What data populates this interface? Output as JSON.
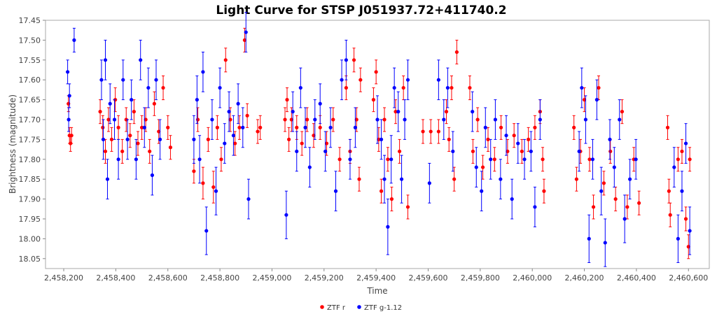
{
  "chart_data": {
    "type": "scatter",
    "title": "Light Curve for STSP J051937.72+411740.2",
    "xlabel": "Time",
    "ylabel": "Brightness (magnitude)",
    "xlim": [
      2458130,
      2460680
    ],
    "ylim": [
      17.45,
      18.075
    ],
    "y_inverted": true,
    "grid": false,
    "legend_position": "bottom-center",
    "x_ticks": [
      2458200,
      2458400,
      2458600,
      2458800,
      2459000,
      2459200,
      2459400,
      2459600,
      2459800,
      2460000,
      2460200,
      2460400,
      2460600
    ],
    "x_tick_labels": [
      "2,458,200",
      "2,458,400",
      "2,458,600",
      "2,458,800",
      "2,459,000",
      "2,459,200",
      "2,459,400",
      "2,459,600",
      "2,459,800",
      "2,460,000",
      "2,460,200",
      "2,460,400",
      "2,460,600"
    ],
    "y_ticks": [
      17.45,
      17.5,
      17.55,
      17.6,
      17.65,
      17.7,
      17.75,
      17.8,
      17.85,
      17.9,
      17.95,
      18.0,
      18.05
    ],
    "y_tick_labels": [
      "17.45",
      "17.50",
      "17.55",
      "17.60",
      "17.65",
      "17.70",
      "17.75",
      "17.80",
      "17.85",
      "17.90",
      "17.95",
      "18.00",
      "18.05"
    ],
    "series": [
      {
        "name": "ZTF r",
        "color": "#ff0000",
        "points": [
          [
            2458218,
            17.66,
            0.02
          ],
          [
            2458222,
            17.74,
            0.02
          ],
          [
            2458226,
            17.76,
            0.02
          ],
          [
            2458230,
            17.74,
            0.02
          ],
          [
            2458340,
            17.68,
            0.03
          ],
          [
            2458350,
            17.72,
            0.03
          ],
          [
            2458360,
            17.78,
            0.03
          ],
          [
            2458372,
            17.7,
            0.03
          ],
          [
            2458384,
            17.75,
            0.03
          ],
          [
            2458398,
            17.65,
            0.03
          ],
          [
            2458410,
            17.72,
            0.03
          ],
          [
            2458425,
            17.78,
            0.03
          ],
          [
            2458440,
            17.7,
            0.03
          ],
          [
            2458455,
            17.74,
            0.03
          ],
          [
            2458470,
            17.68,
            0.03
          ],
          [
            2458485,
            17.76,
            0.03
          ],
          [
            2458500,
            17.72,
            0.03
          ],
          [
            2458515,
            17.7,
            0.03
          ],
          [
            2458530,
            17.78,
            0.03
          ],
          [
            2458548,
            17.66,
            0.03
          ],
          [
            2458565,
            17.73,
            0.03
          ],
          [
            2458582,
            17.62,
            0.03
          ],
          [
            2458600,
            17.72,
            0.03
          ],
          [
            2458610,
            17.77,
            0.03
          ],
          [
            2458700,
            17.83,
            0.03
          ],
          [
            2458715,
            17.7,
            0.03
          ],
          [
            2458735,
            17.86,
            0.04
          ],
          [
            2458755,
            17.75,
            0.03
          ],
          [
            2458775,
            17.87,
            0.04
          ],
          [
            2458790,
            17.72,
            0.03
          ],
          [
            2458805,
            17.8,
            0.03
          ],
          [
            2458822,
            17.55,
            0.03
          ],
          [
            2458840,
            17.7,
            0.03
          ],
          [
            2458858,
            17.76,
            0.03
          ],
          [
            2458875,
            17.72,
            0.03
          ],
          [
            2458895,
            17.5,
            0.03
          ],
          [
            2458905,
            17.69,
            0.03
          ],
          [
            2458945,
            17.73,
            0.03
          ],
          [
            2458955,
            17.72,
            0.03
          ],
          [
            2459050,
            17.7,
            0.03
          ],
          [
            2459058,
            17.65,
            0.03
          ],
          [
            2459065,
            17.75,
            0.03
          ],
          [
            2459075,
            17.7,
            0.03
          ],
          [
            2459095,
            17.72,
            0.03
          ],
          [
            2459115,
            17.76,
            0.03
          ],
          [
            2459135,
            17.7,
            0.03
          ],
          [
            2459160,
            17.74,
            0.03
          ],
          [
            2459185,
            17.72,
            0.03
          ],
          [
            2459210,
            17.76,
            0.03
          ],
          [
            2459235,
            17.7,
            0.03
          ],
          [
            2459260,
            17.8,
            0.03
          ],
          [
            2459285,
            17.62,
            0.03
          ],
          [
            2459300,
            17.78,
            0.03
          ],
          [
            2459315,
            17.55,
            0.03
          ],
          [
            2459325,
            17.7,
            0.03
          ],
          [
            2459335,
            17.85,
            0.03
          ],
          [
            2459340,
            17.6,
            0.03
          ],
          [
            2459390,
            17.65,
            0.03
          ],
          [
            2459400,
            17.58,
            0.03
          ],
          [
            2459410,
            17.75,
            0.03
          ],
          [
            2459420,
            17.88,
            0.03
          ],
          [
            2459432,
            17.7,
            0.03
          ],
          [
            2459445,
            17.8,
            0.03
          ],
          [
            2459460,
            17.9,
            0.03
          ],
          [
            2459475,
            17.68,
            0.03
          ],
          [
            2459490,
            17.78,
            0.03
          ],
          [
            2459505,
            17.62,
            0.03
          ],
          [
            2459522,
            17.92,
            0.03
          ],
          [
            2459580,
            17.73,
            0.03
          ],
          [
            2459610,
            17.73,
            0.03
          ],
          [
            2459640,
            17.73,
            0.03
          ],
          [
            2459670,
            17.68,
            0.03
          ],
          [
            2459680,
            17.75,
            0.03
          ],
          [
            2459690,
            17.62,
            0.03
          ],
          [
            2459700,
            17.85,
            0.03
          ],
          [
            2459710,
            17.53,
            0.03
          ],
          [
            2459760,
            17.62,
            0.03
          ],
          [
            2459772,
            17.78,
            0.03
          ],
          [
            2459790,
            17.7,
            0.03
          ],
          [
            2459810,
            17.82,
            0.03
          ],
          [
            2459830,
            17.75,
            0.03
          ],
          [
            2459855,
            17.8,
            0.03
          ],
          [
            2459880,
            17.72,
            0.03
          ],
          [
            2459905,
            17.78,
            0.03
          ],
          [
            2459930,
            17.74,
            0.03
          ],
          [
            2459960,
            17.78,
            0.03
          ],
          [
            2459985,
            17.75,
            0.03
          ],
          [
            2460010,
            17.72,
            0.03
          ],
          [
            2460030,
            17.68,
            0.03
          ],
          [
            2460040,
            17.8,
            0.03
          ],
          [
            2460045,
            17.88,
            0.03
          ],
          [
            2460160,
            17.72,
            0.03
          ],
          [
            2460170,
            17.85,
            0.03
          ],
          [
            2460185,
            17.78,
            0.03
          ],
          [
            2460200,
            17.65,
            0.03
          ],
          [
            2460220,
            17.8,
            0.03
          ],
          [
            2460235,
            17.92,
            0.03
          ],
          [
            2460255,
            17.62,
            0.03
          ],
          [
            2460275,
            17.86,
            0.03
          ],
          [
            2460300,
            17.78,
            0.03
          ],
          [
            2460320,
            17.9,
            0.03
          ],
          [
            2460345,
            17.68,
            0.03
          ],
          [
            2460365,
            17.92,
            0.03
          ],
          [
            2460390,
            17.8,
            0.03
          ],
          [
            2460410,
            17.91,
            0.03
          ],
          [
            2460520,
            17.72,
            0.03
          ],
          [
            2460525,
            17.88,
            0.03
          ],
          [
            2460530,
            17.94,
            0.03
          ],
          [
            2460560,
            17.8,
            0.03
          ],
          [
            2460575,
            17.78,
            0.03
          ],
          [
            2460590,
            17.95,
            0.03
          ],
          [
            2460600,
            18.02,
            0.03
          ],
          [
            2460605,
            17.8,
            0.03
          ]
        ]
      },
      {
        "name": "ZTF g-1.12",
        "color": "#0000ff",
        "points": [
          [
            2458215,
            17.58,
            0.03
          ],
          [
            2458219,
            17.7,
            0.03
          ],
          [
            2458222,
            17.64,
            0.03
          ],
          [
            2458240,
            17.5,
            0.03
          ],
          [
            2458345,
            17.6,
            0.05
          ],
          [
            2458352,
            17.75,
            0.05
          ],
          [
            2458360,
            17.55,
            0.05
          ],
          [
            2458368,
            17.85,
            0.05
          ],
          [
            2458378,
            17.66,
            0.05
          ],
          [
            2458395,
            17.7,
            0.05
          ],
          [
            2458410,
            17.8,
            0.05
          ],
          [
            2458428,
            17.6,
            0.05
          ],
          [
            2458445,
            17.75,
            0.05
          ],
          [
            2458460,
            17.65,
            0.05
          ],
          [
            2458478,
            17.8,
            0.05
          ],
          [
            2458495,
            17.55,
            0.05
          ],
          [
            2458510,
            17.72,
            0.05
          ],
          [
            2458525,
            17.62,
            0.05
          ],
          [
            2458540,
            17.84,
            0.05
          ],
          [
            2458555,
            17.6,
            0.05
          ],
          [
            2458570,
            17.75,
            0.05
          ],
          [
            2458700,
            17.75,
            0.06
          ],
          [
            2458712,
            17.65,
            0.06
          ],
          [
            2458722,
            17.8,
            0.06
          ],
          [
            2458735,
            17.58,
            0.05
          ],
          [
            2458748,
            17.98,
            0.06
          ],
          [
            2458770,
            17.7,
            0.05
          ],
          [
            2458785,
            17.88,
            0.06
          ],
          [
            2458800,
            17.62,
            0.05
          ],
          [
            2458818,
            17.76,
            0.05
          ],
          [
            2458835,
            17.68,
            0.05
          ],
          [
            2458852,
            17.74,
            0.05
          ],
          [
            2458870,
            17.66,
            0.05
          ],
          [
            2458888,
            17.72,
            0.05
          ],
          [
            2458900,
            17.48,
            0.05
          ],
          [
            2458910,
            17.9,
            0.05
          ],
          [
            2459055,
            17.94,
            0.06
          ],
          [
            2459080,
            17.68,
            0.05
          ],
          [
            2459095,
            17.78,
            0.05
          ],
          [
            2459110,
            17.62,
            0.05
          ],
          [
            2459128,
            17.72,
            0.05
          ],
          [
            2459145,
            17.82,
            0.05
          ],
          [
            2459165,
            17.7,
            0.05
          ],
          [
            2459185,
            17.66,
            0.05
          ],
          [
            2459205,
            17.78,
            0.05
          ],
          [
            2459225,
            17.72,
            0.05
          ],
          [
            2459245,
            17.88,
            0.05
          ],
          [
            2459268,
            17.6,
            0.05
          ],
          [
            2459285,
            17.55,
            0.05
          ],
          [
            2459300,
            17.8,
            0.05
          ],
          [
            2459320,
            17.72,
            0.05
          ],
          [
            2459405,
            17.7,
            0.06
          ],
          [
            2459420,
            17.75,
            0.05
          ],
          [
            2459432,
            17.85,
            0.06
          ],
          [
            2459445,
            17.97,
            0.07
          ],
          [
            2459458,
            17.8,
            0.06
          ],
          [
            2459470,
            17.62,
            0.05
          ],
          [
            2459485,
            17.68,
            0.05
          ],
          [
            2459498,
            17.85,
            0.06
          ],
          [
            2459510,
            17.7,
            0.05
          ],
          [
            2459522,
            17.6,
            0.05
          ],
          [
            2459605,
            17.86,
            0.05
          ],
          [
            2459640,
            17.6,
            0.05
          ],
          [
            2459660,
            17.7,
            0.05
          ],
          [
            2459675,
            17.62,
            0.05
          ],
          [
            2459695,
            17.78,
            0.05
          ],
          [
            2459770,
            17.68,
            0.05
          ],
          [
            2459785,
            17.82,
            0.05
          ],
          [
            2459805,
            17.88,
            0.05
          ],
          [
            2459820,
            17.72,
            0.05
          ],
          [
            2459840,
            17.8,
            0.05
          ],
          [
            2459858,
            17.7,
            0.05
          ],
          [
            2459878,
            17.85,
            0.05
          ],
          [
            2459900,
            17.74,
            0.05
          ],
          [
            2459922,
            17.9,
            0.05
          ],
          [
            2459945,
            17.76,
            0.05
          ],
          [
            2459970,
            17.8,
            0.05
          ],
          [
            2459995,
            17.78,
            0.05
          ],
          [
            2460010,
            17.92,
            0.05
          ],
          [
            2460030,
            17.7,
            0.05
          ],
          [
            2460180,
            17.78,
            0.05
          ],
          [
            2460190,
            17.62,
            0.05
          ],
          [
            2460205,
            17.7,
            0.06
          ],
          [
            2460218,
            18.0,
            0.06
          ],
          [
            2460232,
            17.8,
            0.05
          ],
          [
            2460248,
            17.65,
            0.05
          ],
          [
            2460265,
            17.88,
            0.06
          ],
          [
            2460280,
            18.01,
            0.06
          ],
          [
            2460298,
            17.75,
            0.05
          ],
          [
            2460315,
            17.82,
            0.05
          ],
          [
            2460335,
            17.7,
            0.05
          ],
          [
            2460355,
            17.95,
            0.06
          ],
          [
            2460375,
            17.85,
            0.05
          ],
          [
            2460398,
            17.8,
            0.05
          ],
          [
            2460545,
            17.82,
            0.05
          ],
          [
            2460560,
            18.0,
            0.06
          ],
          [
            2460575,
            17.88,
            0.05
          ],
          [
            2460590,
            17.76,
            0.05
          ],
          [
            2460605,
            17.98,
            0.06
          ]
        ]
      }
    ]
  }
}
